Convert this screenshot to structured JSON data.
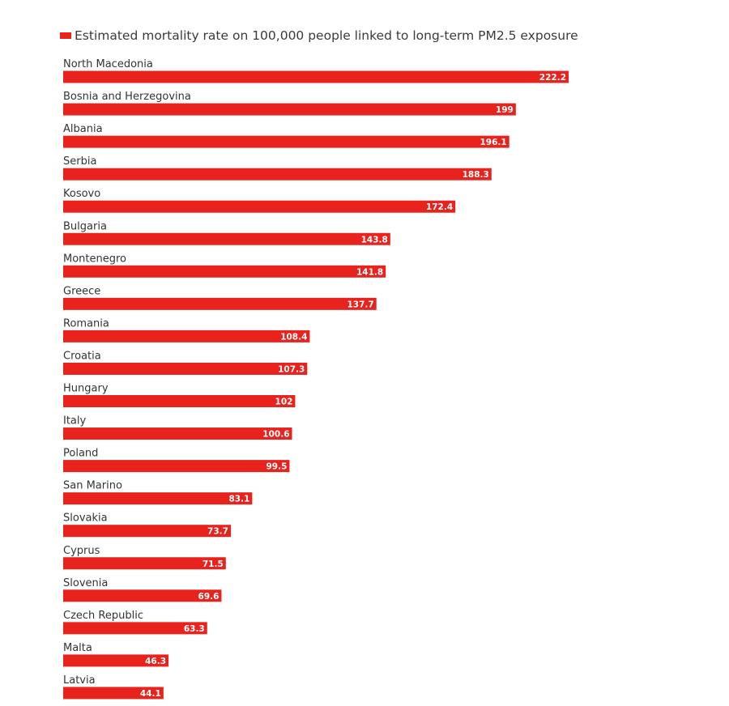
{
  "chart_data": {
    "type": "bar",
    "orientation": "horizontal",
    "legend": {
      "position": "top-left",
      "entries": [
        "Estimated mortality rate on 100,000 people linked to long-term PM2.5 exposure"
      ]
    },
    "categories": [
      "North Macedonia",
      "Bosnia and Herzegovina",
      "Albania",
      "Serbia",
      "Kosovo",
      "Bulgaria",
      "Montenegro",
      "Greece",
      "Romania",
      "Croatia",
      "Hungary",
      "Italy",
      "Poland",
      "San Marino",
      "Slovakia",
      "Cyprus",
      "Slovenia",
      "Czech Republic",
      "Malta",
      "Latvia"
    ],
    "series": [
      {
        "name": "Estimated mortality rate on 100,000 people linked to long-term PM2.5 exposure",
        "values": [
          222.2,
          199,
          196.1,
          188.3,
          172.4,
          143.8,
          141.8,
          137.7,
          108.4,
          107.3,
          102,
          100.6,
          99.5,
          83.1,
          73.7,
          71.5,
          69.6,
          63.3,
          46.3,
          44.1
        ],
        "value_labels": [
          "222.2",
          "199",
          "196.1",
          "188.3",
          "172.4",
          "143.8",
          "141.8",
          "137.7",
          "108.4",
          "107.3",
          "102",
          "100.6",
          "99.5",
          "83.1",
          "73.7",
          "71.5",
          "69.6",
          "63.3",
          "46.3",
          "44.1"
        ]
      }
    ],
    "xlim": [
      0,
      222.2
    ],
    "grid": false,
    "colors": {
      "bar": "#e8231e",
      "value_label": "#ffffff",
      "category_label": "#333333",
      "legend_text": "#3b3b3b"
    }
  }
}
